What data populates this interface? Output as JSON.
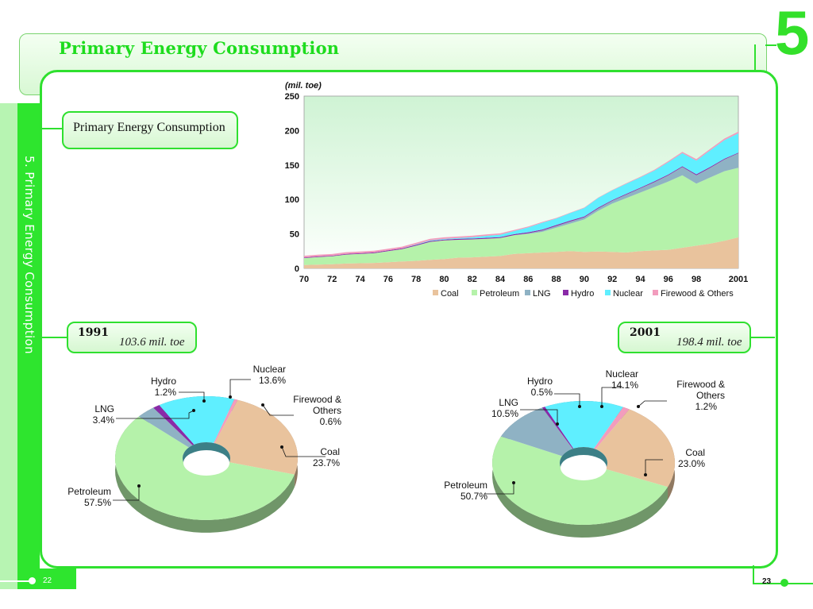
{
  "header": {
    "title": "Primary Energy Consumption",
    "chapter": "5"
  },
  "sidebar": {
    "label": "5. Primary Energy Consumption"
  },
  "section": {
    "label": "Primary Energy Consumption"
  },
  "footer": {
    "page_left": "22",
    "page_right": "23"
  },
  "pie_1991": {
    "year": "1991",
    "total": "103.6 mil. toe"
  },
  "pie_2001": {
    "year": "2001",
    "total": "198.4 mil. toe"
  },
  "colors": {
    "coal": "#e9c39d",
    "petroleum": "#b5f2aa",
    "lng": "#8fb2c4",
    "hydro": "#8a2aa8",
    "nuclear": "#5fefff",
    "firewood": "#f29cbd",
    "accent": "#2fe02f"
  },
  "chart_data": [
    {
      "type": "area",
      "unit_label": "(mil. toe)",
      "x": [
        1970,
        1971,
        1972,
        1973,
        1974,
        1975,
        1976,
        1977,
        1978,
        1979,
        1980,
        1981,
        1982,
        1983,
        1984,
        1985,
        1986,
        1987,
        1988,
        1989,
        1990,
        1991,
        1992,
        1993,
        1994,
        1995,
        1996,
        1997,
        1998,
        1999,
        2000,
        2001
      ],
      "x_tick_labels": [
        "70",
        "72",
        "74",
        "76",
        "78",
        "80",
        "82",
        "84",
        "86",
        "88",
        "90",
        "92",
        "94",
        "96",
        "98",
        "2001"
      ],
      "ylim": [
        0,
        250
      ],
      "y_ticks": [
        0,
        50,
        100,
        150,
        200,
        250
      ],
      "legend": [
        "Coal",
        "Petroleum",
        "LNG",
        "Hydro",
        "Nuclear",
        "Firewood & Others"
      ],
      "series": [
        {
          "name": "Coal",
          "values": [
            5,
            5.5,
            6,
            7,
            7.5,
            8,
            9,
            10,
            11,
            12.5,
            13.5,
            15.5,
            16,
            17,
            18,
            21,
            22,
            23,
            24,
            25,
            24,
            24.5,
            24,
            23,
            25,
            26,
            27,
            30,
            33,
            36,
            40,
            45
          ]
        },
        {
          "name": "Petroleum",
          "values": [
            10,
            11,
            11.5,
            13,
            13.5,
            14,
            16,
            18,
            22,
            26,
            27,
            26,
            26,
            26,
            26,
            27,
            28,
            30,
            35,
            40,
            47,
            59,
            70,
            79,
            85,
            92,
            99,
            105,
            90,
            96,
            101,
            101
          ]
        },
        {
          "name": "LNG",
          "values": [
            0,
            0,
            0,
            0,
            0,
            0,
            0,
            0,
            0,
            0,
            0,
            0,
            0,
            0,
            0,
            0.3,
            1,
            2,
            2.5,
            3,
            3,
            3.5,
            4,
            5,
            6,
            7,
            9,
            12,
            12,
            14,
            17,
            21
          ]
        },
        {
          "name": "Hydro",
          "values": [
            0.8,
            0.9,
            0.9,
            1,
            1,
            1.1,
            1.1,
            1.2,
            1.2,
            1.3,
            1.3,
            1.3,
            1.3,
            1.4,
            1.4,
            1.4,
            1.4,
            1.3,
            1.4,
            1.3,
            1.3,
            1.3,
            1.1,
            1.2,
            1.0,
            1.3,
            1.2,
            1.2,
            1.5,
            1.4,
            1.1,
            1.0
          ]
        },
        {
          "name": "Nuclear",
          "values": [
            0,
            0,
            0,
            0,
            0,
            0,
            0,
            0,
            0.6,
            0.9,
            0.9,
            1.2,
            2,
            2.8,
            3.5,
            4.4,
            7,
            10,
            9.5,
            11,
            12.3,
            14,
            14,
            14.5,
            15,
            15.5,
            18,
            19,
            20,
            24,
            27,
            28
          ]
        },
        {
          "name": "Firewood & Others",
          "values": [
            2.5,
            2.5,
            2.5,
            2.5,
            2.5,
            2.5,
            2.5,
            2.4,
            2.4,
            2.3,
            2.3,
            2.2,
            2.1,
            2,
            1.9,
            1.7,
            1.3,
            1.1,
            0.8,
            0.7,
            0.6,
            0.6,
            0.7,
            0.9,
            1,
            1.2,
            1.5,
            1.8,
            2.0,
            2.1,
            2.3,
            2.4
          ]
        }
      ]
    },
    {
      "type": "pie",
      "title": "1991",
      "slices": [
        {
          "name": "Coal",
          "label": "Coal",
          "value": 23.7,
          "pct": "23.7%"
        },
        {
          "name": "Petroleum",
          "label": "Petroleum",
          "value": 57.5,
          "pct": "57.5%"
        },
        {
          "name": "LNG",
          "label": "LNG",
          "value": 3.4,
          "pct": "3.4%"
        },
        {
          "name": "Hydro",
          "label": "Hydro",
          "value": 1.2,
          "pct": "1.2%"
        },
        {
          "name": "Nuclear",
          "label": "Nuclear",
          "value": 13.6,
          "pct": "13.6%"
        },
        {
          "name": "Firewood & Others",
          "label": "Firewood & Others",
          "value": 0.6,
          "pct": "0.6%"
        }
      ]
    },
    {
      "type": "pie",
      "title": "2001",
      "slices": [
        {
          "name": "Coal",
          "label": "Coal",
          "value": 23.0,
          "pct": "23.0%"
        },
        {
          "name": "Petroleum",
          "label": "Petroleum",
          "value": 50.7,
          "pct": "50.7%"
        },
        {
          "name": "LNG",
          "label": "LNG",
          "value": 10.5,
          "pct": "10.5%"
        },
        {
          "name": "Hydro",
          "label": "Hydro",
          "value": 0.5,
          "pct": "0.5%"
        },
        {
          "name": "Nuclear",
          "label": "Nuclear",
          "value": 14.1,
          "pct": "14.1%"
        },
        {
          "name": "Firewood & Others",
          "label": "Firewood & Others",
          "value": 1.2,
          "pct": "1.2%"
        }
      ]
    }
  ]
}
